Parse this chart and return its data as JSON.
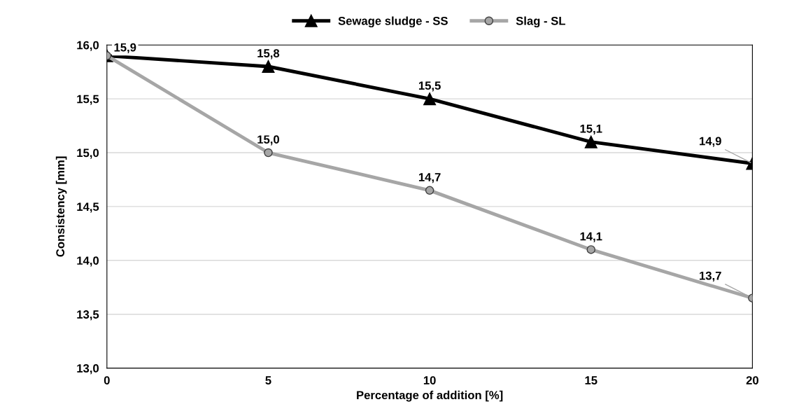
{
  "chart_data": {
    "type": "line",
    "xlabel": "Percentage of addition [%]",
    "ylabel": "Consistency [mm]",
    "x": [
      0,
      5,
      10,
      15,
      20
    ],
    "series": [
      {
        "name": "Sewage sludge - SS",
        "color": "#000000",
        "marker": "triangle",
        "values": [
          15.9,
          15.8,
          15.5,
          15.1,
          14.9
        ],
        "value_labels": [
          null,
          "15,8",
          "15,5",
          "15,1",
          "14,9"
        ]
      },
      {
        "name": "Slag - SL",
        "color": "#a6a6a6",
        "marker": "circle",
        "values": [
          15.9,
          15.0,
          14.65,
          14.1,
          13.65
        ],
        "value_labels": [
          "15,9",
          "15,0",
          "14,7",
          "14,1",
          "13,7"
        ]
      }
    ],
    "xlim": [
      0,
      20
    ],
    "xticks": [
      0,
      5,
      10,
      15,
      20
    ],
    "ylim": [
      13.0,
      16.0
    ],
    "yticks": [
      {
        "value": 13.0,
        "label": "13,0"
      },
      {
        "value": 13.5,
        "label": "13,5"
      },
      {
        "value": 14.0,
        "label": "14,0"
      },
      {
        "value": 14.5,
        "label": "14,5"
      },
      {
        "value": 15.0,
        "label": "15,0"
      },
      {
        "value": 15.5,
        "label": "15,5"
      },
      {
        "value": 16.0,
        "label": "16,0"
      }
    ],
    "grid": "y",
    "legend": "top",
    "line_style": "solid"
  }
}
